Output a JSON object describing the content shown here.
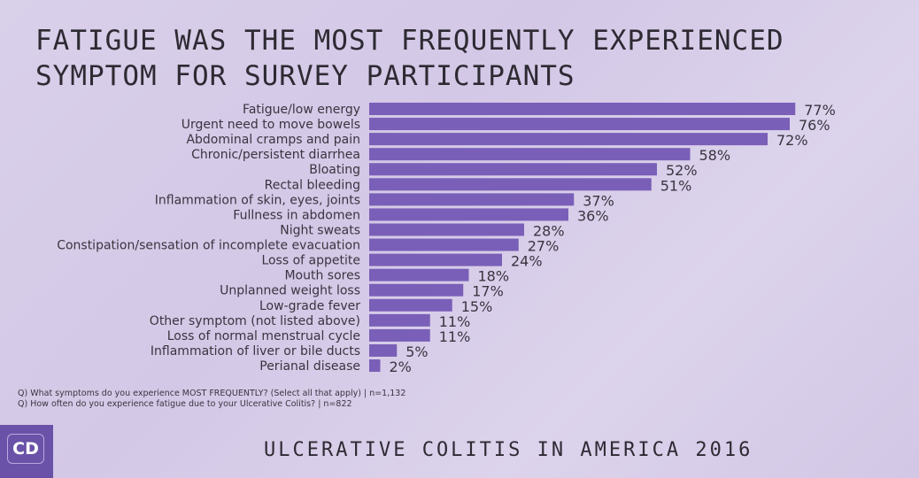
{
  "chart_data": {
    "type": "bar",
    "orientation": "horizontal",
    "title": "Fatigue was the most frequently experienced symptom for survey participants",
    "categories": [
      "Fatigue/low energy",
      "Urgent need to move bowels",
      "Abdominal cramps and pain",
      "Chronic/persistent diarrhea",
      "Bloating",
      "Rectal bleeding",
      "Inflammation of skin, eyes, joints",
      "Fullness in abdomen",
      "Night sweats",
      "Constipation/sensation of incomplete evacuation",
      "Loss of appetite",
      "Mouth sores",
      "Unplanned weight loss",
      "Low-grade fever",
      "Other symptom (not listed above)",
      "Loss of normal menstrual cycle",
      "Inflammation of liver or bile ducts",
      "Perianal disease"
    ],
    "values": [
      77,
      76,
      72,
      58,
      52,
      51,
      37,
      36,
      28,
      27,
      24,
      18,
      17,
      15,
      11,
      11,
      5,
      2
    ],
    "value_suffix": "%",
    "xlim": [
      0,
      100
    ],
    "grid": false,
    "bar_color": "#7a5fb8"
  },
  "notes": [
    "Q) What symptoms do you experience MOST FREQUENTLY? (Select all that apply) | n=1,132",
    "Q) How often do you experience fatigue due to your Ulcerative Colitis? | n=822"
  ],
  "logo": {
    "text": "CD",
    "color": "#6a52a8"
  },
  "footer": "Ulcerative Colitis in America 2016"
}
